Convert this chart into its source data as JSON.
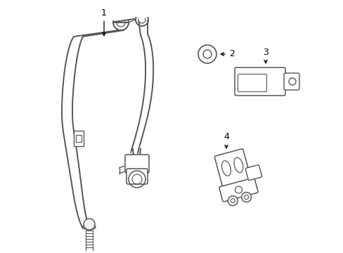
{
  "bg_color": "#ffffff",
  "lc": "#555555",
  "fig_width": 4.89,
  "fig_height": 3.6,
  "dpi": 100,
  "belt_lw": 1.4,
  "detail_lw": 0.9
}
